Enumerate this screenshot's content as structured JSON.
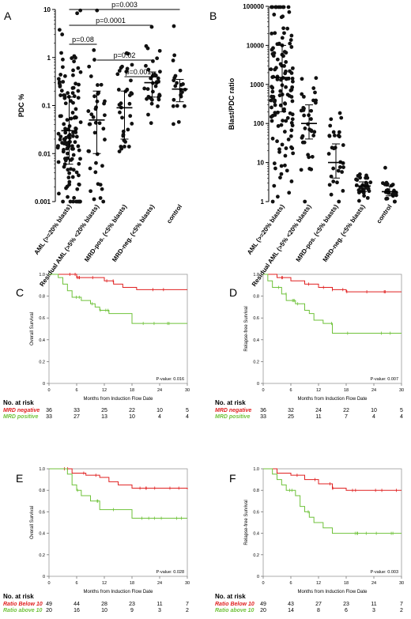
{
  "chart_data": [
    {
      "panel": "A",
      "type": "scatter",
      "ylabel": "PDC %",
      "yscale": "log",
      "ylim": [
        0.001,
        10
      ],
      "y_ticks": [
        "0.001",
        "0.01",
        "0.1",
        "1",
        "10"
      ],
      "categories": [
        "AML (>=20% blasts)",
        "Residual AML (>5% <20% blasts)",
        "MRD-pos. (<5% blasts)",
        "MRD-neg. (<5% blasts)",
        "control"
      ],
      "medians": [
        0.03,
        0.05,
        0.09,
        0.3,
        0.22
      ],
      "iqr": [
        [
          0.006,
          0.15
        ],
        [
          0.01,
          0.2
        ],
        [
          0.02,
          0.2
        ],
        [
          0.15,
          0.5
        ],
        [
          0.12,
          0.35
        ]
      ],
      "n_points": [
        130,
        40,
        35,
        36,
        22
      ],
      "significance": [
        {
          "from": 0,
          "to": 4,
          "label": "p=0.003"
        },
        {
          "from": 0,
          "to": 3,
          "label": "p=0.0001"
        },
        {
          "from": 0,
          "to": 1,
          "label": "p=0.08"
        },
        {
          "from": 1,
          "to": 3,
          "label": "p=0.02"
        },
        {
          "from": 2,
          "to": 3,
          "label": "p=0.001"
        }
      ]
    },
    {
      "panel": "B",
      "type": "scatter",
      "ylabel": "Blast/PDC ratio",
      "yscale": "log",
      "ylim": [
        1,
        100000
      ],
      "y_ticks": [
        "1",
        "10",
        "100",
        "1000",
        "10000",
        "100000"
      ],
      "categories": [
        "AML (>=20% blasts)",
        "Residual AML (>5% <20% blasts)",
        "MRD-pos. (<5% blasts)",
        "MRD-neg. (<5% blasts)",
        "control"
      ],
      "medians": [
        1500,
        100,
        10,
        2.5,
        1.8
      ],
      "iqr": [
        [
          200,
          10000
        ],
        [
          40,
          300
        ],
        [
          4,
          30
        ],
        [
          1.8,
          3.2
        ],
        [
          1.4,
          2.5
        ]
      ],
      "n_points": [
        130,
        35,
        30,
        32,
        22
      ]
    },
    {
      "panel": "C",
      "type": "line",
      "ylabel": "Overall Survival",
      "xlabel": "Months from Induction Flow Date",
      "xlim": [
        0,
        30
      ],
      "ylim": [
        0,
        1
      ],
      "x_ticks": [
        0,
        6,
        12,
        18,
        24,
        30
      ],
      "y_ticks": [
        "0",
        "0.2",
        "0.4",
        "0.6",
        "0.8",
        "1.0"
      ],
      "pvalue": "P-value: 0.016",
      "series": [
        {
          "name": "MRD negative",
          "color": "#e02020",
          "steps": [
            [
              0,
              1.0
            ],
            [
              6,
              0.97
            ],
            [
              12,
              0.94
            ],
            [
              14,
              0.91
            ],
            [
              16,
              0.88
            ],
            [
              19,
              0.86
            ],
            [
              30,
              0.86
            ]
          ],
          "risk": [
            "36",
            "33",
            "25",
            "22",
            "10",
            "5"
          ]
        },
        {
          "name": "MRD positive",
          "color": "#6fc23a",
          "steps": [
            [
              0,
              1.0
            ],
            [
              2,
              0.97
            ],
            [
              3,
              0.91
            ],
            [
              4,
              0.85
            ],
            [
              5,
              0.79
            ],
            [
              7,
              0.76
            ],
            [
              9,
              0.73
            ],
            [
              10,
              0.7
            ],
            [
              11,
              0.67
            ],
            [
              13,
              0.64
            ],
            [
              18,
              0.55
            ],
            [
              30,
              0.55
            ]
          ],
          "risk": [
            "33",
            "27",
            "13",
            "10",
            "4",
            "4"
          ]
        }
      ],
      "risk_title": "No. at risk"
    },
    {
      "panel": "D",
      "type": "line",
      "ylabel": "Relapse-free Survival",
      "xlabel": "Months from Induction Flow Date",
      "xlim": [
        0,
        30
      ],
      "ylim": [
        0,
        1
      ],
      "x_ticks": [
        0,
        6,
        12,
        18,
        24,
        30
      ],
      "y_ticks": [
        "0",
        "0.2",
        "0.4",
        "0.6",
        "0.8",
        "1.0"
      ],
      "pvalue": "P-value: 0.007",
      "series": [
        {
          "name": "MRD negative",
          "color": "#e02020",
          "steps": [
            [
              0,
              1.0
            ],
            [
              3,
              0.97
            ],
            [
              6,
              0.94
            ],
            [
              9,
              0.91
            ],
            [
              12,
              0.88
            ],
            [
              15,
              0.86
            ],
            [
              18,
              0.84
            ],
            [
              30,
              0.84
            ]
          ],
          "risk": [
            "36",
            "32",
            "24",
            "22",
            "10",
            "5"
          ]
        },
        {
          "name": "MRD positive",
          "color": "#6fc23a",
          "steps": [
            [
              0,
              1.0
            ],
            [
              1,
              0.94
            ],
            [
              2,
              0.88
            ],
            [
              4,
              0.82
            ],
            [
              5,
              0.76
            ],
            [
              7,
              0.73
            ],
            [
              9,
              0.67
            ],
            [
              10,
              0.64
            ],
            [
              11,
              0.58
            ],
            [
              13,
              0.55
            ],
            [
              15,
              0.46
            ],
            [
              30,
              0.46
            ]
          ],
          "risk": [
            "33",
            "25",
            "11",
            "7",
            "4",
            "4"
          ]
        }
      ],
      "risk_title": "No. at risk"
    },
    {
      "panel": "E",
      "type": "line",
      "ylabel": "Overall Survival",
      "xlabel": "Months from Induction Flow Date",
      "xlim": [
        0,
        30
      ],
      "ylim": [
        0,
        1
      ],
      "x_ticks": [
        0,
        6,
        12,
        18,
        24,
        30
      ],
      "y_ticks": [
        "0",
        "0.2",
        "0.4",
        "0.6",
        "0.8",
        "1.0"
      ],
      "pvalue": "P-value: 0.028",
      "series": [
        {
          "name": "Ratio Below 10",
          "color": "#e02020",
          "steps": [
            [
              0,
              1.0
            ],
            [
              5,
              0.96
            ],
            [
              8,
              0.94
            ],
            [
              11,
              0.92
            ],
            [
              13,
              0.88
            ],
            [
              15,
              0.85
            ],
            [
              18,
              0.82
            ],
            [
              30,
              0.81
            ]
          ],
          "risk": [
            "49",
            "44",
            "28",
            "23",
            "11",
            "7"
          ]
        },
        {
          "name": "Ratio above 10",
          "color": "#6fc23a",
          "steps": [
            [
              0,
              1.0
            ],
            [
              4,
              0.95
            ],
            [
              5,
              0.85
            ],
            [
              6,
              0.8
            ],
            [
              7,
              0.75
            ],
            [
              9,
              0.7
            ],
            [
              11,
              0.62
            ],
            [
              18,
              0.54
            ],
            [
              30,
              0.54
            ]
          ],
          "risk": [
            "20",
            "16",
            "10",
            "9",
            "3",
            "2"
          ]
        }
      ],
      "risk_title": "No. at risk"
    },
    {
      "panel": "F",
      "type": "line",
      "ylabel": "Relapse-free Survival",
      "xlabel": "Months from Induction Flow Date",
      "xlim": [
        0,
        30
      ],
      "ylim": [
        0,
        1
      ],
      "x_ticks": [
        0,
        6,
        12,
        18,
        24,
        30
      ],
      "y_ticks": [
        "0",
        "0.2",
        "0.4",
        "0.6",
        "0.8",
        "1.0"
      ],
      "pvalue": "P-value: 0.003",
      "series": [
        {
          "name": "Ratio Below 10",
          "color": "#e02020",
          "steps": [
            [
              0,
              1.0
            ],
            [
              3,
              0.96
            ],
            [
              6,
              0.94
            ],
            [
              9,
              0.9
            ],
            [
              12,
              0.86
            ],
            [
              15,
              0.82
            ],
            [
              18,
              0.8
            ],
            [
              30,
              0.8
            ]
          ],
          "risk": [
            "49",
            "43",
            "27",
            "23",
            "11",
            "7"
          ]
        },
        {
          "name": "Ratio above 10",
          "color": "#6fc23a",
          "steps": [
            [
              0,
              1.0
            ],
            [
              2,
              0.95
            ],
            [
              3,
              0.9
            ],
            [
              4,
              0.85
            ],
            [
              5,
              0.8
            ],
            [
              7,
              0.75
            ],
            [
              8,
              0.65
            ],
            [
              9,
              0.6
            ],
            [
              10,
              0.55
            ],
            [
              11,
              0.5
            ],
            [
              13,
              0.45
            ],
            [
              15,
              0.4
            ],
            [
              30,
              0.4
            ]
          ],
          "risk": [
            "20",
            "14",
            "8",
            "6",
            "3",
            "2"
          ]
        }
      ],
      "risk_title": "No. at risk"
    }
  ]
}
